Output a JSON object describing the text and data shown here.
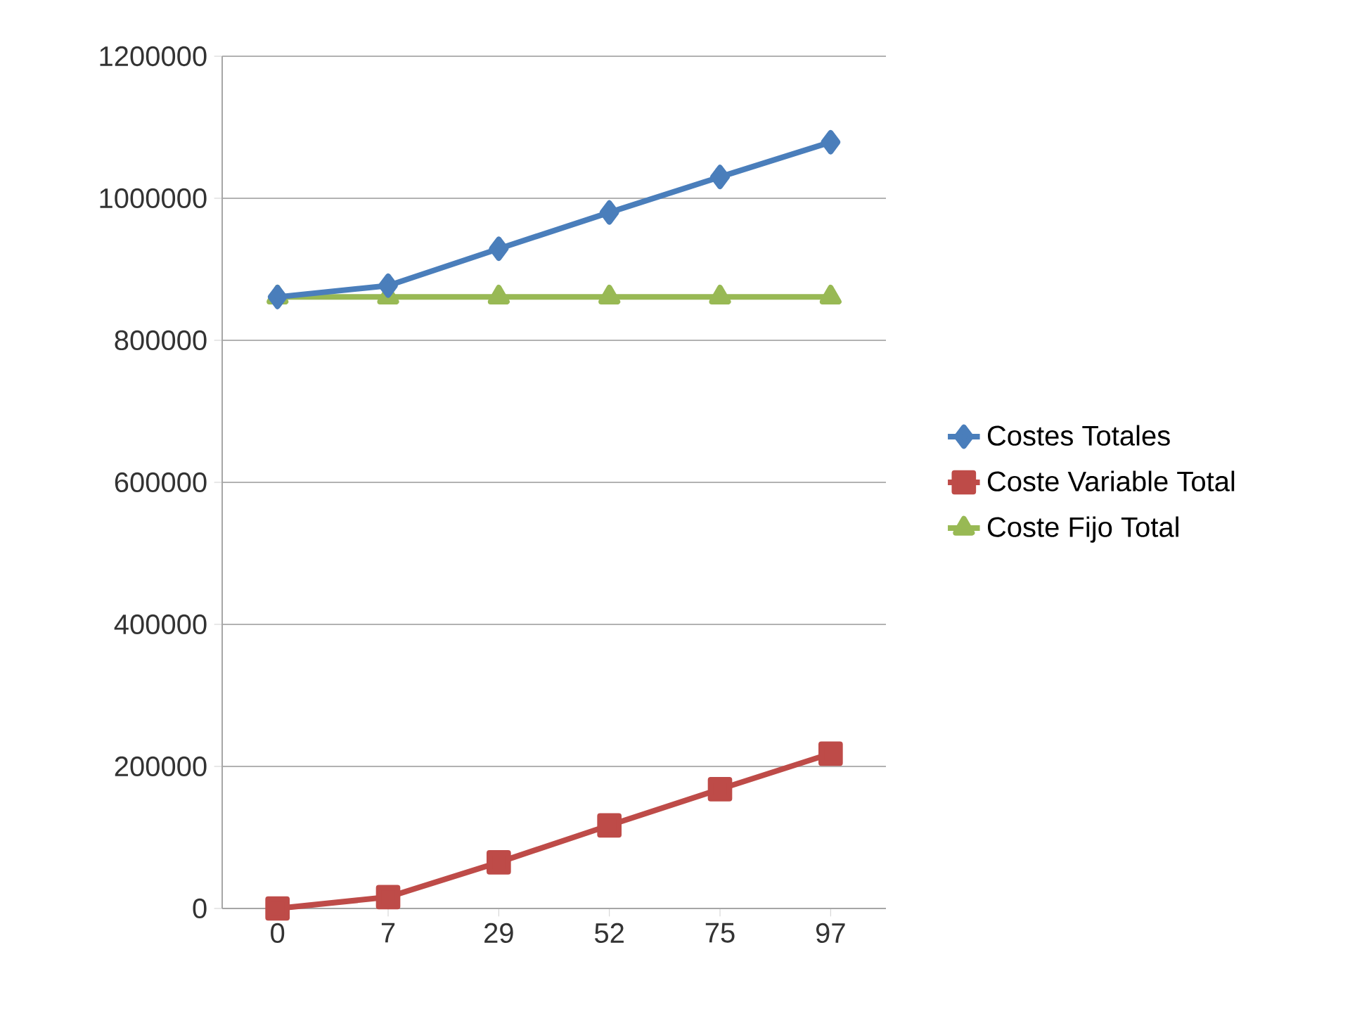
{
  "chart_data": {
    "type": "line",
    "categories": [
      "0",
      "7",
      "29",
      "52",
      "75",
      "97"
    ],
    "series": [
      {
        "name": "Costes Totales",
        "color": "#4a7ebb",
        "marker": "diamond",
        "values": [
          861000,
          877000,
          929000,
          980000,
          1030000,
          1079000
        ]
      },
      {
        "name": "Coste Variable Total",
        "color": "#be4b48",
        "marker": "square",
        "values": [
          0,
          16000,
          65000,
          117000,
          168000,
          218000
        ]
      },
      {
        "name": "Coste Fijo Total",
        "color": "#98b954",
        "marker": "triangle",
        "values": [
          861000,
          861000,
          861000,
          861000,
          861000,
          861000
        ]
      }
    ],
    "ylim": [
      0,
      1200000
    ],
    "yticks": [
      0,
      200000,
      400000,
      600000,
      800000,
      1000000,
      1200000
    ],
    "grid": "y",
    "legend": "right",
    "line_style": "solid"
  }
}
